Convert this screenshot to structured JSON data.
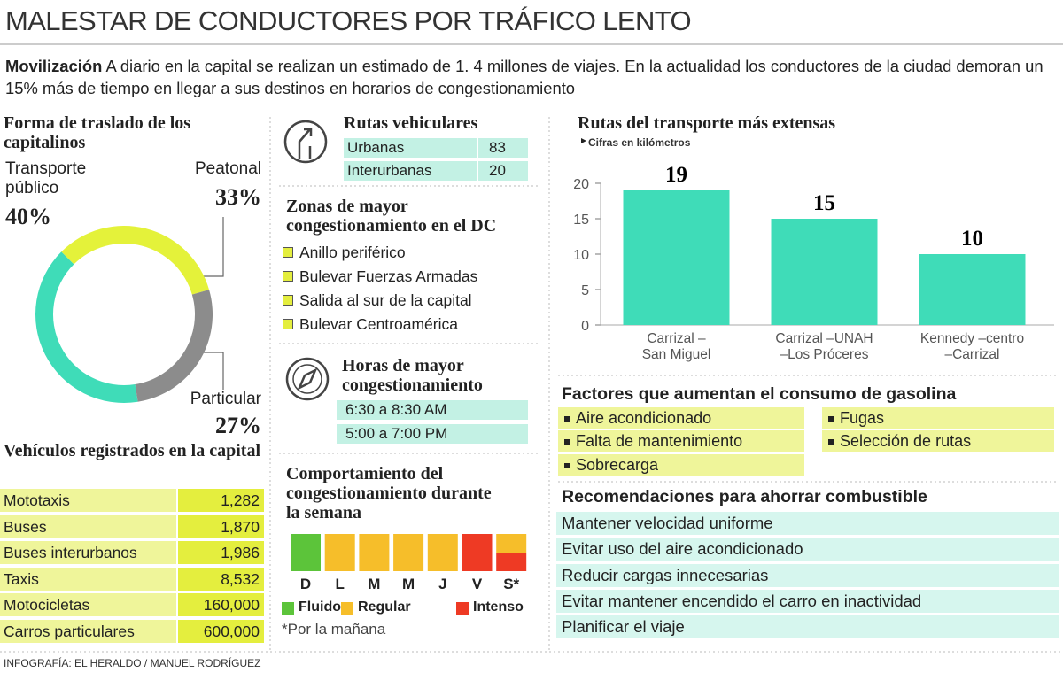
{
  "header": {
    "title": "MALESTAR DE CONDUCTORES POR TRÁFICO LENTO",
    "lead_label": "Movilización",
    "lead_text": "A diario en la capital se realizan un estimado de 1. 4 millones de viajes. En la actualidad los conductores de la ciudad demoran un 15% más de tiempo en llegar a sus destinos en horarios de congestionamiento"
  },
  "chart_data": [
    {
      "type": "pie",
      "donut": true,
      "title": "Forma de traslado de los capitalinos",
      "categories": [
        "Transporte público",
        "Peatonal",
        "Particular"
      ],
      "values": [
        40,
        33,
        27
      ],
      "value_labels": [
        "40%",
        "33%",
        "27%"
      ],
      "colors": [
        "#3fdcb8",
        "#e4f23a",
        "#8c8c8c"
      ]
    },
    {
      "type": "bar",
      "title": "Rutas del transporte más extensas",
      "subtitle": "Cifras en kilómetros",
      "categories": [
        "Carrizal –\nSan Miguel",
        "Carrizal –UNAH\n–Los Próceres",
        "Kennedy –centro\n–Carrizal"
      ],
      "values": [
        19,
        15,
        10
      ],
      "color": "#3fdcb8",
      "ylim": [
        0,
        20
      ],
      "yticks": [
        0,
        5,
        10,
        15,
        20
      ]
    }
  ],
  "vehicles": {
    "title": "Vehículos registrados en la capital",
    "rows": [
      [
        "Mototaxis",
        "1,282"
      ],
      [
        "Buses",
        "1,870"
      ],
      [
        "Buses interurbanos",
        "1,986"
      ],
      [
        "Taxis",
        "8,532"
      ],
      [
        "Motocicletas",
        "160,000"
      ],
      [
        "Carros particulares",
        "600,000"
      ]
    ]
  },
  "routes": {
    "title": "Rutas vehiculares",
    "rows": [
      [
        "Urbanas",
        "83"
      ],
      [
        "Interurbanas",
        "20"
      ]
    ]
  },
  "zones": {
    "title": "Zonas de mayor congestionamiento en el DC",
    "items": [
      "Anillo periférico",
      "Bulevar Fuerzas Armadas",
      "Salida al sur de la capital",
      "Bulevar Centroamérica"
    ]
  },
  "hours": {
    "title": "Horas de mayor congestionamiento",
    "items": [
      "6:30 a 8:30 AM",
      "5:00 a 7:00 PM"
    ]
  },
  "week": {
    "title": "Comportamiento del congestionamiento durante la semana",
    "days": [
      {
        "label": "D",
        "levels": [
          "Fluido"
        ]
      },
      {
        "label": "L",
        "levels": [
          "Regular"
        ]
      },
      {
        "label": "M",
        "levels": [
          "Regular"
        ]
      },
      {
        "label": "M",
        "levels": [
          "Regular"
        ]
      },
      {
        "label": "J",
        "levels": [
          "Regular"
        ]
      },
      {
        "label": "V",
        "levels": [
          "Intenso"
        ]
      },
      {
        "label": "S*",
        "levels": [
          "Regular",
          "Intenso"
        ]
      }
    ],
    "legend": [
      {
        "name": "Fluido",
        "color": "#5cc43a"
      },
      {
        "name": "Regular",
        "color": "#f6be2a"
      },
      {
        "name": "Intenso",
        "color": "#ee3a24"
      }
    ],
    "note": "*Por la mañana"
  },
  "factors": {
    "title": "Factores que aumentan el consumo de gasolina",
    "items": [
      "Aire acondicionado",
      "Falta de mantenimiento",
      "Sobrecarga",
      "Fugas",
      "Selección de rutas"
    ]
  },
  "recommendations": {
    "title": "Recomendaciones para ahorrar combustible",
    "items": [
      "Mantener velocidad uniforme",
      "Evitar uso del aire acondicionado",
      "Reducir cargas innecesarias",
      "Evitar mantener encendido el carro en inactividad",
      "Planificar el viaje"
    ]
  },
  "footer": {
    "credit": "INFOGRAFÍA: EL HERALDO / MANUEL RODRÍGUEZ"
  }
}
